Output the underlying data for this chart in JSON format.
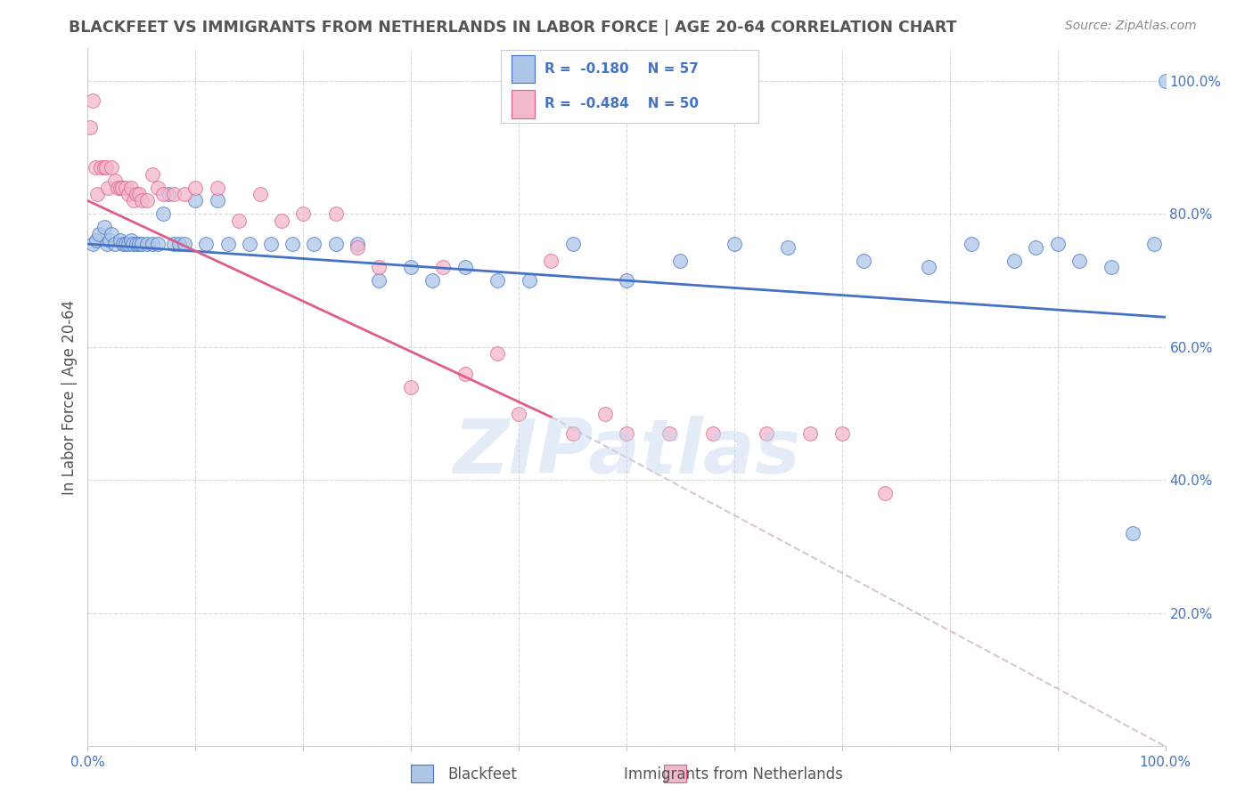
{
  "title": "BLACKFEET VS IMMIGRANTS FROM NETHERLANDS IN LABOR FORCE | AGE 20-64 CORRELATION CHART",
  "source": "Source: ZipAtlas.com",
  "ylabel": "In Labor Force | Age 20-64",
  "blue_R": -0.18,
  "blue_N": 57,
  "pink_R": -0.484,
  "pink_N": 50,
  "blue_color": "#adc6e8",
  "pink_color": "#f2b8cb",
  "blue_line_color": "#4472c4",
  "pink_line_color": "#e05c8a",
  "dashed_line_color": "#d0b8c8",
  "legend_text_color": "#4472c4",
  "title_color": "#555555",
  "source_color": "#888888",
  "grid_color": "#d8d8d8",
  "background_color": "#ffffff",
  "watermark": "ZIPatlas",
  "xlim": [
    0.0,
    1.0
  ],
  "ylim": [
    0.0,
    1.05
  ],
  "x_ticks": [
    0.0,
    0.1,
    0.2,
    0.3,
    0.4,
    0.5,
    0.6,
    0.7,
    0.8,
    0.9,
    1.0
  ],
  "y_ticks": [
    0.0,
    0.2,
    0.4,
    0.6,
    0.8,
    1.0
  ],
  "blue_line_x0": 0.0,
  "blue_line_y0": 0.755,
  "blue_line_x1": 1.0,
  "blue_line_y1": 0.645,
  "pink_line_x0": 0.0,
  "pink_line_y0": 0.82,
  "pink_line_x1": 0.43,
  "pink_line_y1": 0.495,
  "dash_line_x0": 0.43,
  "dash_line_y0": 0.495,
  "dash_line_x1": 1.0,
  "dash_line_y1": 0.0,
  "blue_scatter_x": [
    0.005,
    0.008,
    0.01,
    0.015,
    0.018,
    0.02,
    0.022,
    0.025,
    0.03,
    0.033,
    0.035,
    0.038,
    0.04,
    0.042,
    0.045,
    0.048,
    0.05,
    0.055,
    0.06,
    0.065,
    0.07,
    0.075,
    0.08,
    0.085,
    0.09,
    0.1,
    0.11,
    0.12,
    0.13,
    0.15,
    0.17,
    0.19,
    0.21,
    0.23,
    0.25,
    0.27,
    0.3,
    0.32,
    0.35,
    0.38,
    0.41,
    0.45,
    0.5,
    0.55,
    0.6,
    0.65,
    0.72,
    0.78,
    0.82,
    0.86,
    0.88,
    0.9,
    0.92,
    0.95,
    0.97,
    0.99,
    1.0
  ],
  "blue_scatter_y": [
    0.755,
    0.76,
    0.77,
    0.78,
    0.755,
    0.76,
    0.77,
    0.755,
    0.76,
    0.755,
    0.755,
    0.755,
    0.76,
    0.755,
    0.755,
    0.755,
    0.755,
    0.755,
    0.755,
    0.755,
    0.8,
    0.83,
    0.755,
    0.755,
    0.755,
    0.82,
    0.755,
    0.82,
    0.755,
    0.755,
    0.755,
    0.755,
    0.755,
    0.755,
    0.755,
    0.7,
    0.72,
    0.7,
    0.72,
    0.7,
    0.7,
    0.755,
    0.7,
    0.73,
    0.755,
    0.75,
    0.73,
    0.72,
    0.755,
    0.73,
    0.75,
    0.755,
    0.73,
    0.72,
    0.32,
    0.755,
    1.0
  ],
  "pink_scatter_x": [
    0.002,
    0.005,
    0.007,
    0.009,
    0.012,
    0.015,
    0.017,
    0.019,
    0.022,
    0.025,
    0.028,
    0.03,
    0.032,
    0.035,
    0.038,
    0.04,
    0.043,
    0.045,
    0.048,
    0.05,
    0.055,
    0.06,
    0.065,
    0.07,
    0.08,
    0.09,
    0.1,
    0.12,
    0.14,
    0.16,
    0.18,
    0.2,
    0.23,
    0.25,
    0.27,
    0.3,
    0.33,
    0.35,
    0.38,
    0.4,
    0.43,
    0.45,
    0.48,
    0.5,
    0.54,
    0.58,
    0.63,
    0.67,
    0.7,
    0.74
  ],
  "pink_scatter_y": [
    0.93,
    0.97,
    0.87,
    0.83,
    0.87,
    0.87,
    0.87,
    0.84,
    0.87,
    0.85,
    0.84,
    0.84,
    0.84,
    0.84,
    0.83,
    0.84,
    0.82,
    0.83,
    0.83,
    0.82,
    0.82,
    0.86,
    0.84,
    0.83,
    0.83,
    0.83,
    0.84,
    0.84,
    0.79,
    0.83,
    0.79,
    0.8,
    0.8,
    0.75,
    0.72,
    0.54,
    0.72,
    0.56,
    0.59,
    0.5,
    0.73,
    0.47,
    0.5,
    0.47,
    0.47,
    0.47,
    0.47,
    0.47,
    0.47,
    0.38
  ]
}
